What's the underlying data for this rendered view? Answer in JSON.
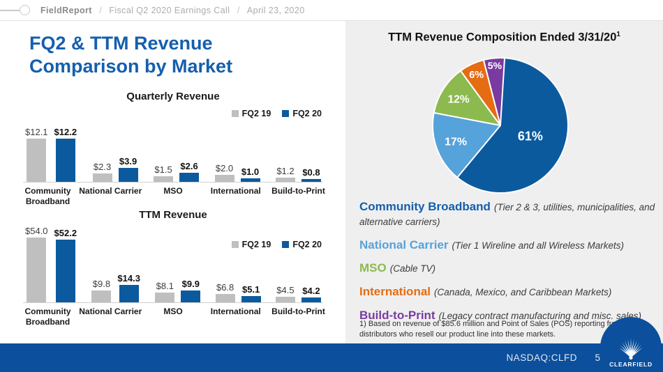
{
  "header": {
    "brand": "FieldReport",
    "separator": "/",
    "breadcrumb_1": "Fiscal Q2 2020 Earnings Call",
    "breadcrumb_2": "April 23, 2020"
  },
  "title": "FQ2 & TTM Revenue Comparison by Market",
  "chart_data": [
    {
      "type": "bar",
      "title": "Quarterly Revenue",
      "categories": [
        "Community Broadband",
        "National Carrier",
        "MSO",
        "International",
        "Build-to-Print"
      ],
      "series": [
        {
          "name": "FQ2 19",
          "color": "#bfbfbf",
          "values": [
            12.1,
            2.3,
            1.5,
            2.0,
            1.2
          ]
        },
        {
          "name": "FQ2 20",
          "color": "#0c5a9e",
          "values": [
            12.2,
            3.9,
            2.6,
            1.0,
            0.8
          ]
        }
      ],
      "value_prefix": "$",
      "ylim": [
        0,
        13
      ],
      "legend_position": "top-right",
      "grid": false
    },
    {
      "type": "bar",
      "title": "TTM Revenue",
      "categories": [
        "Community Broadband",
        "National Carrier",
        "MSO",
        "International",
        "Build-to-Print"
      ],
      "series": [
        {
          "name": "FQ2 19",
          "color": "#bfbfbf",
          "values": [
            54.0,
            9.8,
            8.1,
            6.8,
            4.5
          ]
        },
        {
          "name": "FQ2 20",
          "color": "#0c5a9e",
          "values": [
            52.2,
            14.3,
            9.9,
            5.1,
            4.2
          ]
        }
      ],
      "value_prefix": "$",
      "ylim": [
        0,
        58
      ],
      "legend_position": "top-right",
      "grid": false
    },
    {
      "type": "pie",
      "title": "TTM Revenue Composition Ended 3/31/20",
      "title_superscript": "1",
      "slices": [
        {
          "label": "Community Broadband",
          "pct": 61,
          "color": "#0c5a9e"
        },
        {
          "label": "National Carrier",
          "pct": 17,
          "color": "#56a2da"
        },
        {
          "label": "MSO",
          "pct": 12,
          "color": "#8cba4f"
        },
        {
          "label": "International",
          "pct": 6,
          "color": "#e56c13"
        },
        {
          "label": "Build-to-Print",
          "pct": 5,
          "color": "#7a3ba0"
        }
      ],
      "start_angle_deg": 0,
      "label_format": "percent"
    }
  ],
  "market_legend": [
    {
      "name": "Community Broadband",
      "color": "#155fad",
      "description": "(Tier 2 & 3, utilities, municipalities, and alternative carriers)"
    },
    {
      "name": "National Carrier",
      "color": "#56a2da",
      "description": "(Tier 1 Wireline and all Wireless Markets)"
    },
    {
      "name": "MSO",
      "color": "#8cba4f",
      "description": "(Cable TV)"
    },
    {
      "name": "International",
      "color": "#e56c13",
      "description": "(Canada, Mexico, and Caribbean Markets)"
    },
    {
      "name": "Build-to-Print",
      "color": "#7a3ba0",
      "description": "(Legacy contract manufacturing and misc. sales)"
    }
  ],
  "footnote": "1) Based on revenue of $85.6 million and Point of Sales (POS) reporting from distributors who resell our product line into these markets.",
  "footer": {
    "ticker": "NASDAQ:CLFD",
    "page": "5",
    "logo_text": "CLEARFIELD"
  }
}
